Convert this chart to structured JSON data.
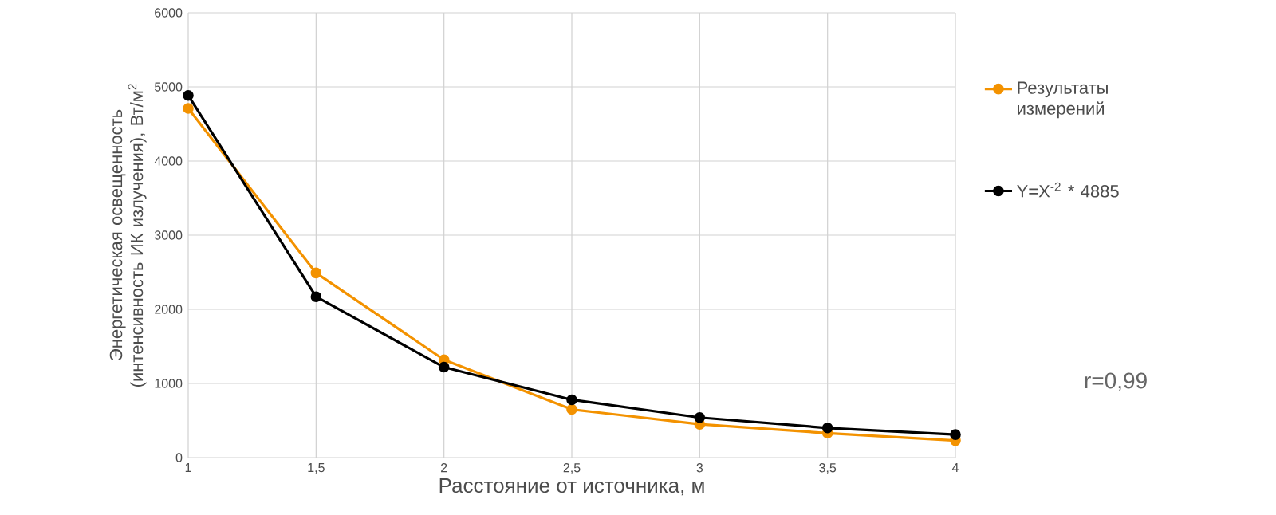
{
  "chart_data": {
    "type": "line",
    "xlabel": "Расстояние от источника, м",
    "ylabel": "Энергетическая освещенность (интенсивность ИК излучения), Вт/м$^{2}$",
    "x": [
      1,
      1.5,
      2,
      2.5,
      3,
      3.5,
      4
    ],
    "series": [
      {
        "name": "Результаты измерений",
        "color": "#f39200",
        "values": [
          4710,
          2490,
          1320,
          650,
          450,
          330,
          230
        ]
      },
      {
        "name": "Y=X$^{-2}$ * 4885",
        "color": "#000000",
        "values": [
          4885,
          2170,
          1220,
          780,
          540,
          400,
          310
        ]
      }
    ],
    "annotations": [
      "r=0,99"
    ],
    "xlim": [
      1,
      4
    ],
    "ylim": [
      0,
      6000
    ],
    "xticks": [
      1,
      {
        "value": 1.5,
        "label": "1,5"
      },
      2,
      {
        "value": 2.5,
        "label": "2,5"
      },
      3,
      {
        "value": 3.5,
        "label": "3,5"
      },
      4
    ],
    "yticks": [
      0,
      1000,
      2000,
      3000,
      4000,
      5000,
      6000
    ],
    "grid": true,
    "legend": "right",
    "marker": "circle",
    "line_style": "solid"
  }
}
